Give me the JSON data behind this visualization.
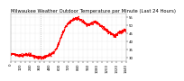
{
  "title": "Milwaukee Weather Outdoor Temperature per Minute (Last 24 Hours)",
  "line_color": "#ff0000",
  "bg_color": "#ffffff",
  "grid_color": "#bbbbbb",
  "ylim": [
    28,
    57
  ],
  "yticks": [
    30,
    35,
    40,
    45,
    50,
    55
  ],
  "ytick_labels": [
    "30",
    "35",
    "40",
    "45",
    "50",
    "55"
  ],
  "x_data": [
    0,
    30,
    60,
    90,
    120,
    150,
    180,
    210,
    240,
    270,
    300,
    330,
    360,
    390,
    420,
    450,
    480,
    510,
    540,
    570,
    600,
    630,
    660,
    690,
    720,
    750,
    780,
    810,
    840,
    870,
    900,
    930,
    960,
    990,
    1020,
    1050,
    1080,
    1110,
    1140,
    1170,
    1200,
    1230,
    1260,
    1290,
    1320,
    1350,
    1380,
    1410,
    1440
  ],
  "y_data": [
    32.2,
    32.0,
    31.8,
    31.5,
    31.3,
    31.1,
    31.8,
    32.0,
    31.5,
    31.2,
    30.5,
    30.2,
    30.0,
    30.1,
    30.3,
    31.0,
    31.5,
    32.2,
    33.5,
    35.8,
    39.0,
    43.0,
    46.5,
    49.5,
    51.5,
    52.5,
    53.5,
    54.2,
    54.0,
    53.5,
    52.5,
    51.0,
    50.2,
    50.5,
    51.5,
    52.0,
    51.2,
    50.0,
    49.0,
    48.0,
    46.5,
    45.5,
    44.5,
    43.5,
    44.0,
    45.5,
    46.0,
    46.5,
    47.2
  ],
  "linewidth": 0.7,
  "title_fontsize": 3.8,
  "tick_fontsize": 2.8,
  "dotted_vline_x": 370,
  "vline_color": "#aaaaaa",
  "noise_std": 0.5
}
